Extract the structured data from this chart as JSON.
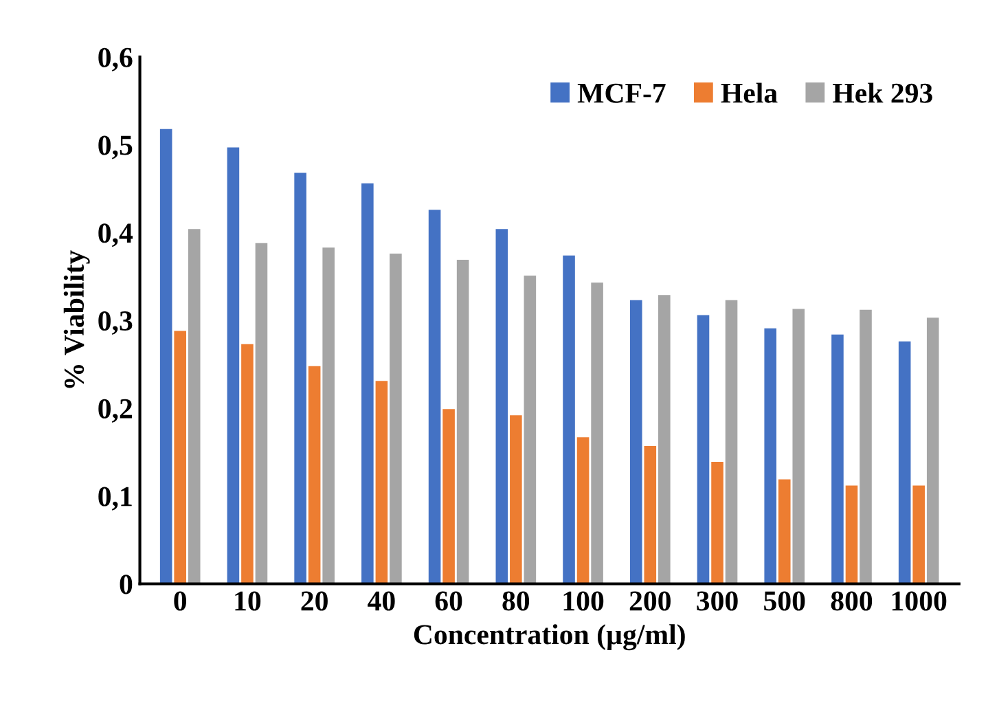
{
  "chart_data": {
    "type": "bar",
    "xlabel": "Concentration (µg/ml)",
    "ylabel": "% Viability",
    "categories": [
      "0",
      "10",
      "20",
      "40",
      "60",
      "80",
      "100",
      "200",
      "300",
      "500",
      "800",
      "1000"
    ],
    "series": [
      {
        "name": "MCF-7",
        "color": "#4472c4",
        "values": [
          0.518,
          0.497,
          0.468,
          0.456,
          0.426,
          0.404,
          0.374,
          0.323,
          0.306,
          0.291,
          0.284,
          0.276
        ]
      },
      {
        "name": "Hela",
        "color": "#ed7d31",
        "values": [
          0.288,
          0.273,
          0.248,
          0.231,
          0.199,
          0.192,
          0.167,
          0.157,
          0.139,
          0.119,
          0.112,
          0.112
        ]
      },
      {
        "name": "Hek 293",
        "color": "#a5a5a5",
        "values": [
          0.404,
          0.388,
          0.383,
          0.376,
          0.369,
          0.351,
          0.343,
          0.329,
          0.323,
          0.313,
          0.312,
          0.303
        ]
      }
    ],
    "ylim": [
      0,
      0.6
    ],
    "yticks": [
      {
        "value": 0,
        "label": "0"
      },
      {
        "value": 0.1,
        "label": "0,1"
      },
      {
        "value": 0.2,
        "label": "0,2"
      },
      {
        "value": 0.3,
        "label": "0,3"
      },
      {
        "value": 0.4,
        "label": "0,4"
      },
      {
        "value": 0.5,
        "label": "0,5"
      },
      {
        "value": 0.6,
        "label": "0,6"
      }
    ],
    "legend": "top right",
    "grid": false
  }
}
